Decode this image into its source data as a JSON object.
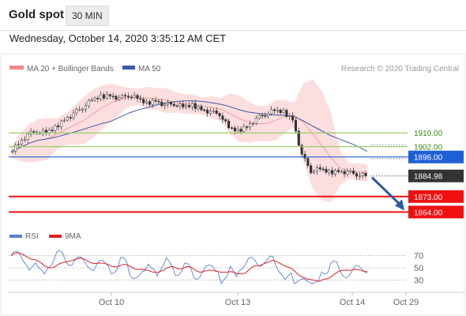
{
  "header": {
    "title": "Gold spot",
    "timeframe": "30 MIN"
  },
  "datetime": "Wednesday, October 14, 2020 3:35:12 AM CET",
  "legend": {
    "ma20": "MA 20 + Bollinger Bands",
    "ma50": "MA 50"
  },
  "credit": "Research © 2020 Trading Central",
  "rsi_legend": {
    "rsi": "RSI",
    "ma9": "9MA"
  },
  "colors": {
    "support": "#ee1111",
    "pivot": "#1f5fd6",
    "resistance": "#9acc6a",
    "band": "#fbd3d3",
    "ma50": "#3b5aa8",
    "current": "#333333",
    "arrow": "#2a5aa0"
  },
  "chart_data": [
    {
      "type": "candlestick",
      "title": "Gold spot",
      "timeframe": "30 MIN",
      "x_ticks": [
        "Oct 10",
        "Oct 13",
        "Oct 14",
        "Oct 29"
      ],
      "ylim": [
        1855,
        1945
      ],
      "levels": [
        {
          "value": 1910.0,
          "label": "1910.00",
          "kind": "resistance"
        },
        {
          "value": 1902.0,
          "label": "1902.00",
          "kind": "resistance"
        },
        {
          "value": 1896.0,
          "label": "1896.00",
          "kind": "pivot"
        },
        {
          "value": 1884.98,
          "label": "1884.98",
          "kind": "current"
        },
        {
          "value": 1873.0,
          "label": "1873.00",
          "kind": "support"
        },
        {
          "value": 1864.0,
          "label": "1864.00",
          "kind": "support"
        }
      ],
      "price_path": [
        1899,
        1904,
        1909,
        1911,
        1910,
        1913,
        1918,
        1921,
        1925,
        1929,
        1931,
        1932,
        1930,
        1932,
        1930,
        1927,
        1929,
        1926,
        1927,
        1925,
        1926,
        1924,
        1922,
        1921,
        1913,
        1911,
        1914,
        1918,
        1921,
        1923,
        1922,
        1918,
        1897,
        1888,
        1889,
        1887,
        1888,
        1887,
        1886,
        1885
      ],
      "series": [
        {
          "name": "MA 20 + Bollinger Bands"
        },
        {
          "name": "MA 50"
        }
      ],
      "annotation": "Projected move from 1884.98 to 1864.00"
    },
    {
      "type": "line",
      "series": [
        {
          "name": "RSI"
        },
        {
          "name": "9MA"
        }
      ],
      "y_ticks": [
        70,
        50,
        30
      ],
      "ylim": [
        15,
        85
      ]
    }
  ]
}
